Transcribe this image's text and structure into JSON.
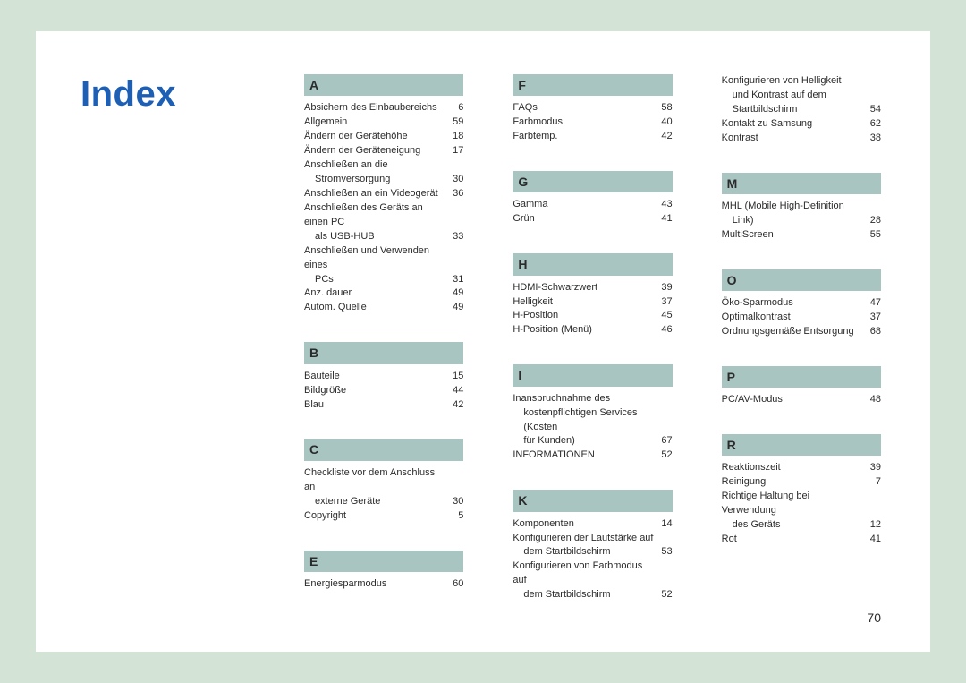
{
  "title": "Index",
  "pageNumber": "70",
  "colors": {
    "pageBg": "#d3e4d6",
    "paper": "#ffffff",
    "titleColor": "#1d5fb5",
    "letterBg": "#a8c5c2"
  },
  "columns": [
    [
      {
        "letter": "A",
        "entries": [
          {
            "t": "Absichern des Einbaubereichs",
            "p": "6"
          },
          {
            "t": "Allgemein",
            "p": "59"
          },
          {
            "t": "Ändern der Gerätehöhe",
            "p": "18"
          },
          {
            "t": "Ändern der Geräteneigung",
            "p": "17"
          },
          {
            "t": "Anschließen an die",
            "p": ""
          },
          {
            "t": "Stromversorgung",
            "p": "30",
            "sub": true
          },
          {
            "t": "Anschließen an ein Videogerät",
            "p": "36"
          },
          {
            "t": "Anschließen des Geräts an einen PC",
            "p": ""
          },
          {
            "t": "als USB-HUB",
            "p": "33",
            "sub": true
          },
          {
            "t": "Anschließen und Verwenden eines",
            "p": ""
          },
          {
            "t": "PCs",
            "p": "31",
            "sub": true
          },
          {
            "t": "Anz. dauer",
            "p": "49"
          },
          {
            "t": "Autom. Quelle",
            "p": "49"
          }
        ]
      },
      {
        "letter": "B",
        "entries": [
          {
            "t": "Bauteile",
            "p": "15"
          },
          {
            "t": "Bildgröße",
            "p": "44"
          },
          {
            "t": "Blau",
            "p": "42"
          }
        ]
      },
      {
        "letter": "C",
        "entries": [
          {
            "t": "Checkliste vor dem Anschluss an",
            "p": ""
          },
          {
            "t": "externe Geräte",
            "p": "30",
            "sub": true
          },
          {
            "t": "Copyright",
            "p": "5"
          }
        ]
      },
      {
        "letter": "E",
        "entries": [
          {
            "t": "Energiesparmodus",
            "p": "60"
          }
        ]
      }
    ],
    [
      {
        "letter": "F",
        "entries": [
          {
            "t": "FAQs",
            "p": "58"
          },
          {
            "t": "Farbmodus",
            "p": "40"
          },
          {
            "t": "Farbtemp.",
            "p": "42"
          }
        ]
      },
      {
        "letter": "G",
        "entries": [
          {
            "t": "Gamma",
            "p": "43"
          },
          {
            "t": "Grün",
            "p": "41"
          }
        ]
      },
      {
        "letter": "H",
        "entries": [
          {
            "t": "HDMI-Schwarzwert",
            "p": "39"
          },
          {
            "t": "Helligkeit",
            "p": "37"
          },
          {
            "t": "H-Position",
            "p": "45"
          },
          {
            "t": "H-Position (Menü)",
            "p": "46"
          }
        ]
      },
      {
        "letter": "I",
        "entries": [
          {
            "t": "Inanspruchnahme des",
            "p": ""
          },
          {
            "t": "kostenpflichtigen Services (Kosten",
            "p": "",
            "sub": true
          },
          {
            "t": "für Kunden)",
            "p": "67",
            "sub": true
          },
          {
            "t": "INFORMATIONEN",
            "p": "52"
          }
        ]
      },
      {
        "letter": "K",
        "entries": [
          {
            "t": "Komponenten",
            "p": "14"
          },
          {
            "t": "Konfigurieren der Lautstärke auf",
            "p": ""
          },
          {
            "t": "dem Startbildschirm",
            "p": "53",
            "sub": true
          },
          {
            "t": "Konfigurieren von Farbmodus auf",
            "p": ""
          },
          {
            "t": "dem Startbildschirm",
            "p": "52",
            "sub": true
          }
        ]
      }
    ],
    [
      {
        "pre": [
          {
            "t": "Konfigurieren von Helligkeit",
            "p": ""
          },
          {
            "t": "und Kontrast auf dem",
            "p": "",
            "sub": true
          },
          {
            "t": "Startbildschirm",
            "p": "54",
            "sub": true
          },
          {
            "t": "Kontakt zu Samsung",
            "p": "62"
          },
          {
            "t": "Kontrast",
            "p": "38"
          }
        ]
      },
      {
        "letter": "M",
        "entries": [
          {
            "t": "MHL (Mobile High-Definition",
            "p": ""
          },
          {
            "t": "Link)",
            "p": "28",
            "sub": true
          },
          {
            "t": "MultiScreen",
            "p": "55"
          }
        ]
      },
      {
        "letter": "O",
        "entries": [
          {
            "t": "Öko-Sparmodus",
            "p": "47"
          },
          {
            "t": "Optimalkontrast",
            "p": "37"
          },
          {
            "t": "Ordnungsgemäße Entsorgung",
            "p": "68"
          }
        ]
      },
      {
        "letter": "P",
        "entries": [
          {
            "t": "PC/AV-Modus",
            "p": "48"
          }
        ]
      },
      {
        "letter": "R",
        "entries": [
          {
            "t": "Reaktionszeit",
            "p": "39"
          },
          {
            "t": "Reinigung",
            "p": "7"
          },
          {
            "t": "Richtige Haltung bei Verwendung",
            "p": ""
          },
          {
            "t": "des Geräts",
            "p": "12",
            "sub": true
          },
          {
            "t": "Rot",
            "p": "41"
          }
        ]
      }
    ]
  ]
}
